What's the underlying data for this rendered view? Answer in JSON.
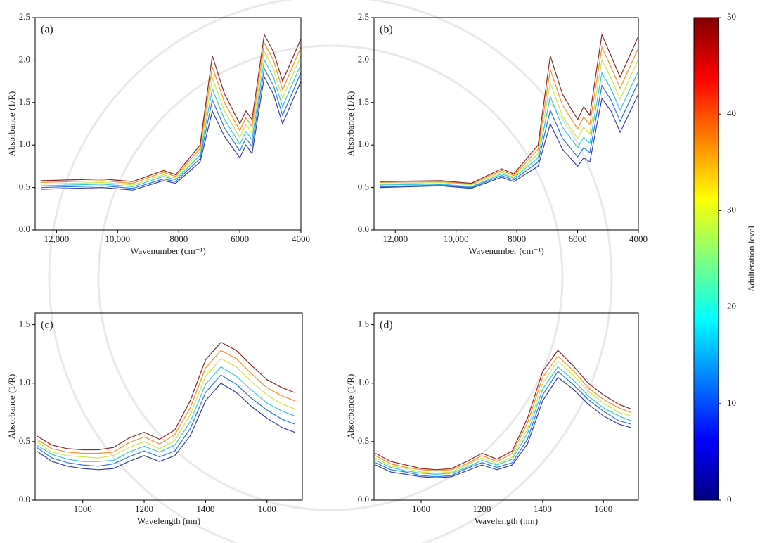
{
  "chart_data": [
    {
      "type": "line",
      "panel_label": "(a)",
      "xlabel": "Wavenumber (cm⁻¹)",
      "ylabel": "Absorbance (1/R)",
      "xlim": [
        12700,
        4000
      ],
      "ylim": [
        0,
        2.5
      ],
      "xticks": [
        {
          "value": 12000,
          "label": "12,000"
        },
        {
          "value": 10000,
          "label": "10,000"
        },
        8000,
        6000,
        4000
      ],
      "yticks": [
        {
          "value": 0,
          "label": "0.0"
        },
        0.5,
        {
          "value": 1,
          "label": "1.0"
        },
        1.5,
        {
          "value": 2,
          "label": "2.0"
        },
        2.5
      ],
      "x": [
        12500,
        10500,
        9500,
        8500,
        8100,
        7300,
        6900,
        6500,
        6000,
        5800,
        5600,
        5200,
        4900,
        4600,
        4000
      ],
      "series": [
        {
          "color": "#1f2a9c",
          "values": [
            0.48,
            0.5,
            0.47,
            0.58,
            0.55,
            0.8,
            1.4,
            1.1,
            0.85,
            1.0,
            0.9,
            1.8,
            1.6,
            1.25,
            1.75
          ]
        },
        {
          "color": "#1565e8",
          "values": [
            0.5,
            0.52,
            0.49,
            0.6,
            0.57,
            0.84,
            1.53,
            1.2,
            0.93,
            1.08,
            0.98,
            1.9,
            1.7,
            1.35,
            1.85
          ]
        },
        {
          "color": "#19c3e0",
          "values": [
            0.52,
            0.54,
            0.51,
            0.63,
            0.59,
            0.88,
            1.66,
            1.3,
            1.01,
            1.16,
            1.06,
            2.0,
            1.8,
            1.45,
            1.95
          ]
        },
        {
          "color": "#c8e632",
          "values": [
            0.54,
            0.56,
            0.53,
            0.65,
            0.61,
            0.92,
            1.79,
            1.4,
            1.09,
            1.24,
            1.14,
            2.1,
            1.9,
            1.55,
            2.05
          ]
        },
        {
          "color": "#ff7f0e",
          "values": [
            0.56,
            0.58,
            0.55,
            0.68,
            0.63,
            0.96,
            1.92,
            1.5,
            1.17,
            1.32,
            1.22,
            2.2,
            2.0,
            1.65,
            2.15
          ]
        },
        {
          "color": "#7f1010",
          "values": [
            0.58,
            0.6,
            0.57,
            0.7,
            0.65,
            1.0,
            2.05,
            1.6,
            1.25,
            1.4,
            1.3,
            2.3,
            2.1,
            1.75,
            2.25
          ]
        }
      ]
    },
    {
      "type": "line",
      "panel_label": "(b)",
      "xlabel": "Wavenumber (cm⁻¹)",
      "ylabel": "Absorbance (1/R)",
      "xlim": [
        12700,
        4000
      ],
      "ylim": [
        0,
        2.5
      ],
      "xticks": [
        {
          "value": 12000,
          "label": "12,000"
        },
        {
          "value": 10000,
          "label": "10,000"
        },
        8000,
        6000,
        4000
      ],
      "yticks": [
        {
          "value": 0,
          "label": "0.0"
        },
        0.5,
        {
          "value": 1,
          "label": "1.0"
        },
        1.5,
        {
          "value": 2,
          "label": "2.0"
        },
        2.5
      ],
      "x": [
        12500,
        10500,
        9500,
        8500,
        8100,
        7300,
        6900,
        6500,
        6000,
        5800,
        5600,
        5200,
        4900,
        4600,
        4000
      ],
      "series": [
        {
          "color": "#1f2a9c",
          "values": [
            0.5,
            0.52,
            0.49,
            0.62,
            0.57,
            0.75,
            1.25,
            0.95,
            0.75,
            0.85,
            0.8,
            1.55,
            1.4,
            1.15,
            1.6
          ]
        },
        {
          "color": "#1565e8",
          "values": [
            0.51,
            0.53,
            0.5,
            0.64,
            0.59,
            0.8,
            1.41,
            1.08,
            0.86,
            0.97,
            0.91,
            1.7,
            1.53,
            1.28,
            1.74
          ]
        },
        {
          "color": "#19c3e0",
          "values": [
            0.53,
            0.54,
            0.51,
            0.66,
            0.61,
            0.85,
            1.57,
            1.21,
            0.97,
            1.09,
            1.02,
            1.85,
            1.66,
            1.41,
            1.87
          ]
        },
        {
          "color": "#c8e632",
          "values": [
            0.54,
            0.56,
            0.53,
            0.68,
            0.62,
            0.9,
            1.73,
            1.34,
            1.08,
            1.21,
            1.13,
            2.0,
            1.79,
            1.54,
            2.01
          ]
        },
        {
          "color": "#ff7f0e",
          "values": [
            0.56,
            0.57,
            0.54,
            0.7,
            0.64,
            0.95,
            1.89,
            1.47,
            1.19,
            1.33,
            1.24,
            2.15,
            1.92,
            1.67,
            2.14
          ]
        },
        {
          "color": "#7f1010",
          "values": [
            0.57,
            0.58,
            0.55,
            0.72,
            0.66,
            1.0,
            2.05,
            1.6,
            1.3,
            1.45,
            1.35,
            2.3,
            2.05,
            1.8,
            2.28
          ]
        }
      ]
    },
    {
      "type": "line",
      "panel_label": "(c)",
      "xlabel": "Wavelength (nm)",
      "ylabel": "Absorbance (1/R)",
      "xlim": [
        845,
        1715
      ],
      "ylim": [
        0,
        1.6
      ],
      "xticks": [
        1000,
        1200,
        1400,
        1600
      ],
      "yticks": [
        {
          "value": 0,
          "label": "0.0"
        },
        0.5,
        {
          "value": 1,
          "label": "1.0"
        },
        1.5
      ],
      "x": [
        850,
        900,
        950,
        1000,
        1050,
        1100,
        1150,
        1200,
        1250,
        1300,
        1350,
        1400,
        1450,
        1500,
        1550,
        1600,
        1650,
        1690
      ],
      "series": [
        {
          "color": "#1f2a9c",
          "values": [
            0.42,
            0.33,
            0.29,
            0.27,
            0.26,
            0.27,
            0.33,
            0.38,
            0.33,
            0.38,
            0.55,
            0.85,
            1.0,
            0.92,
            0.8,
            0.7,
            0.62,
            0.58
          ]
        },
        {
          "color": "#1565e8",
          "values": [
            0.45,
            0.36,
            0.32,
            0.3,
            0.29,
            0.31,
            0.37,
            0.42,
            0.37,
            0.42,
            0.61,
            0.92,
            1.07,
            0.99,
            0.87,
            0.77,
            0.69,
            0.65
          ]
        },
        {
          "color": "#19c3e0",
          "values": [
            0.47,
            0.39,
            0.35,
            0.33,
            0.33,
            0.34,
            0.41,
            0.46,
            0.41,
            0.47,
            0.67,
            0.99,
            1.14,
            1.06,
            0.94,
            0.83,
            0.76,
            0.72
          ]
        },
        {
          "color": "#c8e632",
          "values": [
            0.5,
            0.41,
            0.38,
            0.37,
            0.36,
            0.38,
            0.45,
            0.5,
            0.44,
            0.51,
            0.73,
            1.06,
            1.21,
            1.14,
            1.01,
            0.9,
            0.82,
            0.78
          ]
        },
        {
          "color": "#ff7f0e",
          "values": [
            0.52,
            0.44,
            0.41,
            0.4,
            0.4,
            0.41,
            0.49,
            0.54,
            0.48,
            0.56,
            0.79,
            1.13,
            1.28,
            1.21,
            1.08,
            0.96,
            0.89,
            0.85
          ]
        },
        {
          "color": "#7f1010",
          "values": [
            0.55,
            0.47,
            0.44,
            0.43,
            0.43,
            0.45,
            0.53,
            0.58,
            0.52,
            0.6,
            0.85,
            1.2,
            1.35,
            1.28,
            1.15,
            1.03,
            0.96,
            0.92
          ]
        }
      ]
    },
    {
      "type": "line",
      "panel_label": "(d)",
      "xlabel": "Wavelength (nm)",
      "ylabel": "Absorbance (1/R)",
      "xlim": [
        845,
        1715
      ],
      "ylim": [
        0,
        1.6
      ],
      "xticks": [
        1000,
        1200,
        1400,
        1600
      ],
      "yticks": [
        {
          "value": 0,
          "label": "0.0"
        },
        0.5,
        {
          "value": 1,
          "label": "1.0"
        },
        1.5
      ],
      "x": [
        850,
        900,
        950,
        1000,
        1050,
        1100,
        1150,
        1200,
        1250,
        1300,
        1350,
        1400,
        1450,
        1500,
        1550,
        1600,
        1650,
        1690
      ],
      "series": [
        {
          "color": "#1f2a9c",
          "values": [
            0.3,
            0.24,
            0.22,
            0.2,
            0.19,
            0.2,
            0.25,
            0.3,
            0.26,
            0.3,
            0.48,
            0.85,
            1.05,
            0.95,
            0.82,
            0.72,
            0.65,
            0.62
          ]
        },
        {
          "color": "#1565e8",
          "values": [
            0.32,
            0.26,
            0.24,
            0.21,
            0.2,
            0.21,
            0.27,
            0.32,
            0.28,
            0.32,
            0.52,
            0.9,
            1.1,
            0.99,
            0.86,
            0.76,
            0.68,
            0.65
          ]
        },
        {
          "color": "#19c3e0",
          "values": [
            0.34,
            0.28,
            0.25,
            0.23,
            0.22,
            0.23,
            0.28,
            0.34,
            0.3,
            0.35,
            0.57,
            0.95,
            1.14,
            1.03,
            0.89,
            0.79,
            0.72,
            0.68
          ]
        },
        {
          "color": "#c8e632",
          "values": [
            0.36,
            0.29,
            0.27,
            0.24,
            0.23,
            0.24,
            0.3,
            0.36,
            0.31,
            0.37,
            0.61,
            1.0,
            1.19,
            1.07,
            0.93,
            0.83,
            0.75,
            0.72
          ]
        },
        {
          "color": "#ff7f0e",
          "values": [
            0.38,
            0.31,
            0.28,
            0.26,
            0.25,
            0.26,
            0.31,
            0.38,
            0.33,
            0.4,
            0.66,
            1.05,
            1.23,
            1.11,
            0.96,
            0.86,
            0.79,
            0.75
          ]
        },
        {
          "color": "#7f1010",
          "values": [
            0.4,
            0.33,
            0.3,
            0.27,
            0.26,
            0.27,
            0.33,
            0.4,
            0.35,
            0.42,
            0.7,
            1.1,
            1.28,
            1.15,
            1.0,
            0.9,
            0.82,
            0.78
          ]
        }
      ]
    },
    {
      "type": "colorbar",
      "label": "Adulteration level",
      "lim": [
        0,
        50
      ],
      "ticks": [
        0,
        10,
        20,
        30,
        40,
        50
      ],
      "colors": [
        "#00007f",
        "#0000ff",
        "#007fff",
        "#00ffff",
        "#7fff7f",
        "#ffff00",
        "#ff7f00",
        "#ff0000",
        "#7f0000"
      ]
    }
  ]
}
